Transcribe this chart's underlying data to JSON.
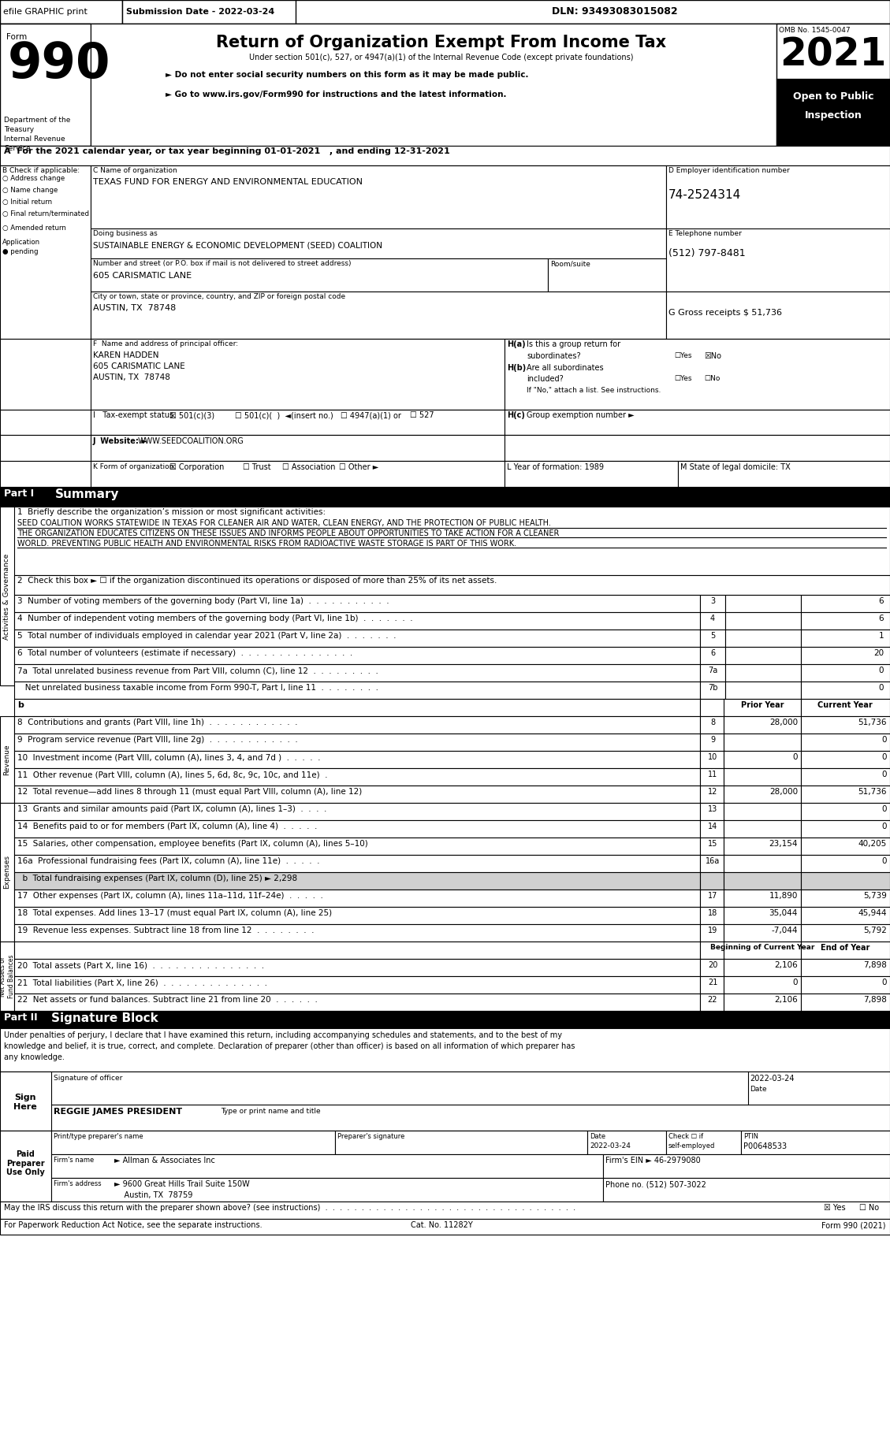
{
  "form_title": "Return of Organization Exempt From Income Tax",
  "subtitle1": "Under section 501(c), 527, or 4947(a)(1) of the Internal Revenue Code (except private foundations)",
  "subtitle2": "► Do not enter social security numbers on this form as it may be made public.",
  "subtitle3": "► Go to www.irs.gov/Form990 for instructions and the latest information.",
  "omb": "OMB No. 1545-0047",
  "year": "2021",
  "line_a": "A  For the 2021 calendar year, or tax year beginning 01-01-2021   , and ending 12-31-2021",
  "org_name_label": "C Name of organization",
  "org_name": "TEXAS FUND FOR ENERGY AND ENVIRONMENTAL EDUCATION",
  "dba_label": "Doing business as",
  "dba_name": "SUSTAINABLE ENERGY & ECONOMIC DEVELOPMENT (SEED) COALITION",
  "address_label": "Number and street (or P.O. box if mail is not delivered to street address)    Room/suite",
  "address": "605 CARISMATIC LANE",
  "city_label": "City or town, state or province, country, and ZIP or foreign postal code",
  "city": "AUSTIN, TX  78748",
  "ein_label": "D Employer identification number",
  "ein": "74-2524314",
  "tel_label": "E Telephone number",
  "tel": "(512) 797-8481",
  "gross_label": "G Gross receipts $ 51,736",
  "principal_label": "F  Name and address of principal officer:",
  "principal_name": "KAREN HADDEN",
  "principal_addr1": "605 CARISMATIC LANE",
  "principal_addr2": "AUSTIN, TX  78748",
  "tax_label": "I   Tax-exempt status:",
  "website_label": "J  Website: ►",
  "website": "WWW.SEEDCOALITION.ORG",
  "k_label": "K Form of organization:",
  "l_label": "L Year of formation: 1989",
  "m_label": "M State of legal domicile: TX",
  "part1_header": "Part I     Summary",
  "part1_1": "1  Briefly describe the organization’s mission or most significant activities:",
  "mission1": "SEED COALITION WORKS STATEWIDE IN TEXAS FOR CLEANER AIR AND WATER, CLEAN ENERGY, AND THE PROTECTION OF PUBLIC HEALTH.",
  "mission2": "THE ORGANIZATION EDUCATES CITIZENS ON THESE ISSUES AND INFORMS PEOPLE ABOUT OPPORTUNITIES TO TAKE ACTION FOR A CLEANER",
  "mission3": "WORLD. PREVENTING PUBLIC HEALTH AND ENVIRONMENTAL RISKS FROM RADIOACTIVE WASTE STORAGE IS PART OF THIS WORK.",
  "line2": "2  Check this box ► ☐ if the organization discontinued its operations or disposed of more than 25% of its net assets.",
  "line3": "3  Number of voting members of the governing body (Part VI, line 1a)  .  .  .  .  .  .  .  .  .  .  .",
  "line4": "4  Number of independent voting members of the governing body (Part VI, line 1b)  .  .  .  .  .  .  .",
  "line5": "5  Total number of individuals employed in calendar year 2021 (Part V, line 2a)  .  .  .  .  .  .  .",
  "line6": "6  Total number of volunteers (estimate if necessary)  .  .  .  .  .  .  .  .  .  .  .  .  .  .  .",
  "line7a": "7a  Total unrelated business revenue from Part VIII, column (C), line 12  .  .  .  .  .  .  .  .  .",
  "line7b": "   Net unrelated business taxable income from Form 990-T, Part I, line 11  .  .  .  .  .  .  .  .",
  "line8": "8  Contributions and grants (Part VIII, line 1h)  .  .  .  .  .  .  .  .  .  .  .  .",
  "line9": "9  Program service revenue (Part VIII, line 2g)  .  .  .  .  .  .  .  .  .  .  .  .",
  "line10": "10  Investment income (Part VIII, column (A), lines 3, 4, and 7d )  .  .  .  .  .",
  "line11": "11  Other revenue (Part VIII, column (A), lines 5, 6d, 8c, 9c, 10c, and 11e)  .",
  "line12": "12  Total revenue—add lines 8 through 11 (must equal Part VIII, column (A), line 12)",
  "line13": "13  Grants and similar amounts paid (Part IX, column (A), lines 1–3)  .  .  .  .",
  "line14": "14  Benefits paid to or for members (Part IX, column (A), line 4)  .  .  .  .  .",
  "line15": "15  Salaries, other compensation, employee benefits (Part IX, column (A), lines 5–10)",
  "line16a": "16a  Professional fundraising fees (Part IX, column (A), line 11e)  .  .  .  .  .",
  "line16b": "  b  Total fundraising expenses (Part IX, column (D), line 25) ► 2,298",
  "line17": "17  Other expenses (Part IX, column (A), lines 11a–11d, 11f–24e)  .  .  .  .  .",
  "line18": "18  Total expenses. Add lines 13–17 (must equal Part IX, column (A), line 25)",
  "line19": "19  Revenue less expenses. Subtract line 18 from line 12  .  .  .  .  .  .  .  .",
  "line20": "20  Total assets (Part X, line 16)  .  .  .  .  .  .  .  .  .  .  .  .  .  .  .",
  "line21": "21  Total liabilities (Part X, line 26)  .  .  .  .  .  .  .  .  .  .  .  .  .  .",
  "line22": "22  Net assets or fund balances. Subtract line 21 from line 20  .  .  .  .  .  .",
  "part2_header": "Part II     Signature Block",
  "sig_text1": "Under penalties of perjury, I declare that I have examined this return, including accompanying schedules and statements, and to the best of my",
  "sig_text2": "knowledge and belief, it is true, correct, and complete. Declaration of preparer (other than officer) is based on all information of which preparer has",
  "sig_text3": "any knowledge.",
  "officer_name": "REGGIE JAMES PRESIDENT",
  "ptin": "P00648533",
  "firm_name": "Allman & Associates Inc",
  "firm_ein": "46-2979080",
  "firm_addr": "9600 Great Hills Trail Suite 150W",
  "firm_phone": "(512) 507-3022",
  "firm_city": "Austin, TX  78759",
  "discuss_label": "May the IRS discuss this return with the preparer shown above? (see instructions)  .  .  .  .  .  .  .  .  .  .  .  .  .  .  .  .  .  .  .  .  .  .  .  .  .  .  .  .  .  .  .  .  .  .  .",
  "footer1": "For Paperwork Reduction Act Notice, see the separate instructions.",
  "footer2": "Cat. No. 11282Y",
  "footer3": "Form 990 (2021)"
}
